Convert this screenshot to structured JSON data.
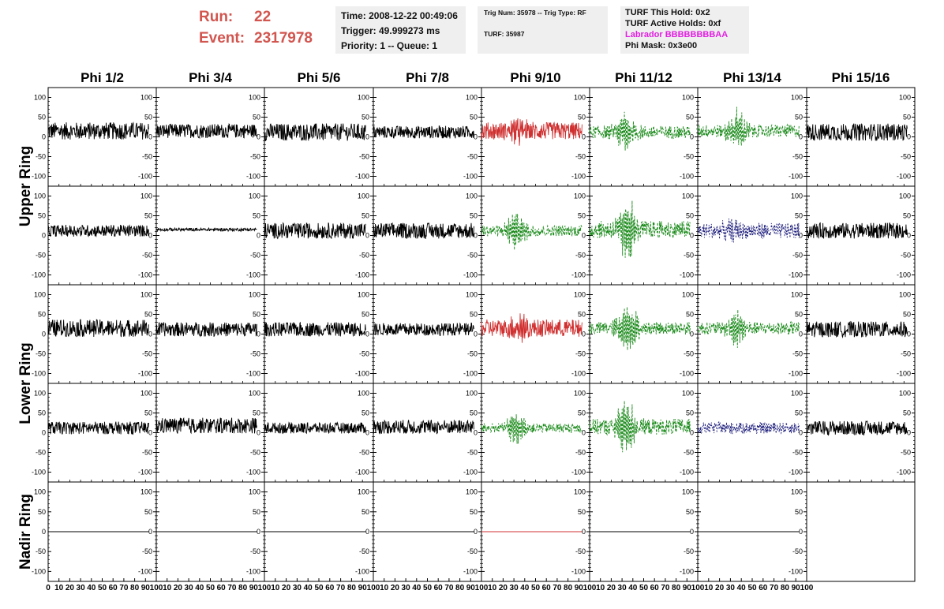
{
  "header": {
    "run_label": "Run:",
    "run_value": "22",
    "event_label": "Event:",
    "event_value": "2317978",
    "time_line": "Time: 2008-12-22 00:49:06",
    "trigger_line": "Trigger: 49.999273 ms",
    "priority_line": "Priority: 1 -- Queue: 1",
    "trig_num_line": "Trig Num: 35978 -- Trig Type: RF",
    "turf_line": "TURF: 35987",
    "turf_this_hold": "TURF This Hold: 0x2",
    "turf_active_holds": "TURF Active Holds: 0xf",
    "labrador": "Labrador BBBBBBBBAA",
    "phi_mask": "Phi Mask: 0x3e00"
  },
  "colors": {
    "run_text": "#d2554f",
    "labrador_text": "#e020e0",
    "normal_trace": "#000000",
    "triggered_trace": "#d03030",
    "neighbor_trace": "#1a8a1a",
    "masked_trace": "#1a1a7a"
  },
  "chart_data": {
    "type": "line",
    "columns": [
      "Phi 1/2",
      "Phi 3/4",
      "Phi 5/6",
      "Phi 7/8",
      "Phi 9/10",
      "Phi 11/12",
      "Phi 13/14",
      "Phi 15/16"
    ],
    "rows": [
      "Upper Ring",
      "Upper Ring",
      "Lower Ring",
      "Lower Ring",
      "Nadir Ring"
    ],
    "row_labels": [
      "Upper Ring",
      "Lower Ring",
      "Nadir Ring"
    ],
    "ylim": [
      -125,
      125
    ],
    "yticks": [
      -100,
      -50,
      0,
      50,
      100
    ],
    "ytick_labels": [
      "-100",
      "-50",
      "0",
      "50",
      "100"
    ],
    "xlim": [
      0,
      100
    ],
    "xticks": [
      0,
      10,
      20,
      30,
      40,
      50,
      60,
      70,
      80,
      90,
      100
    ],
    "xtick_labels": [
      "0",
      "10",
      "20",
      "30",
      "40",
      "50",
      "60",
      "70",
      "80",
      "90",
      "100"
    ],
    "grid": false,
    "panels": [
      [
        {
          "style": "normal",
          "amp": 22,
          "offset": 15,
          "burst": 0,
          "burst_center": 0
        },
        {
          "style": "normal",
          "amp": 18,
          "offset": 15,
          "burst": 0,
          "burst_center": 0
        },
        {
          "style": "normal",
          "amp": 22,
          "offset": 12,
          "burst": 0,
          "burst_center": 0
        },
        {
          "style": "normal",
          "amp": 16,
          "offset": 12,
          "burst": 0,
          "burst_center": 0
        },
        {
          "style": "triggered",
          "amp": 22,
          "offset": 15,
          "burst": 28,
          "burst_center": 35
        },
        {
          "style": "neighbor",
          "amp": 16,
          "offset": 12,
          "burst": 48,
          "burst_center": 33
        },
        {
          "style": "neighbor",
          "amp": 16,
          "offset": 15,
          "burst": 50,
          "burst_center": 36
        },
        {
          "style": "normal",
          "amp": 22,
          "offset": 12,
          "burst": 0,
          "burst_center": 0
        }
      ],
      [
        {
          "style": "normal",
          "amp": 15,
          "offset": 12,
          "burst": 0,
          "burst_center": 0
        },
        {
          "style": "normal",
          "amp": 4,
          "offset": 15,
          "burst": 0,
          "burst_center": 0
        },
        {
          "style": "normal",
          "amp": 20,
          "offset": 12,
          "burst": 0,
          "burst_center": 0
        },
        {
          "style": "normal",
          "amp": 20,
          "offset": 12,
          "burst": 0,
          "burst_center": 0
        },
        {
          "style": "neighbor",
          "amp": 14,
          "offset": 12,
          "burst": 48,
          "burst_center": 32
        },
        {
          "style": "neighbor",
          "amp": 22,
          "offset": 15,
          "burst": 70,
          "burst_center": 35
        },
        {
          "style": "masked",
          "amp": 20,
          "offset": 12,
          "burst": 15,
          "burst_center": 30
        },
        {
          "style": "normal",
          "amp": 20,
          "offset": 12,
          "burst": 0,
          "burst_center": 0
        }
      ],
      [
        {
          "style": "normal",
          "amp": 22,
          "offset": 15,
          "burst": 0,
          "burst_center": 0
        },
        {
          "style": "normal",
          "amp": 18,
          "offset": 12,
          "burst": 0,
          "burst_center": 0
        },
        {
          "style": "normal",
          "amp": 18,
          "offset": 12,
          "burst": 0,
          "burst_center": 0
        },
        {
          "style": "normal",
          "amp": 16,
          "offset": 12,
          "burst": 0,
          "burst_center": 0
        },
        {
          "style": "triggered",
          "amp": 22,
          "offset": 15,
          "burst": 25,
          "burst_center": 35
        },
        {
          "style": "neighbor",
          "amp": 16,
          "offset": 15,
          "burst": 70,
          "burst_center": 35
        },
        {
          "style": "neighbor",
          "amp": 16,
          "offset": 15,
          "burst": 45,
          "burst_center": 35
        },
        {
          "style": "normal",
          "amp": 20,
          "offset": 12,
          "burst": 0,
          "burst_center": 0
        }
      ],
      [
        {
          "style": "normal",
          "amp": 16,
          "offset": 12,
          "burst": 0,
          "burst_center": 0
        },
        {
          "style": "normal",
          "amp": 20,
          "offset": 18,
          "burst": 0,
          "burst_center": 0
        },
        {
          "style": "normal",
          "amp": 14,
          "offset": 12,
          "burst": 0,
          "burst_center": 0
        },
        {
          "style": "normal",
          "amp": 18,
          "offset": 15,
          "burst": 0,
          "burst_center": 0
        },
        {
          "style": "neighbor",
          "amp": 12,
          "offset": 12,
          "burst": 38,
          "burst_center": 32
        },
        {
          "style": "neighbor",
          "amp": 20,
          "offset": 15,
          "burst": 70,
          "burst_center": 33
        },
        {
          "style": "masked",
          "amp": 14,
          "offset": 12,
          "burst": 8,
          "burst_center": 30
        },
        {
          "style": "normal",
          "amp": 18,
          "offset": 12,
          "burst": 0,
          "burst_center": 0
        }
      ],
      [
        {
          "style": "normal",
          "amp": 0,
          "offset": 0,
          "burst": 0,
          "burst_center": 0
        },
        {
          "style": "normal",
          "amp": 0,
          "offset": 0,
          "burst": 0,
          "burst_center": 0
        },
        {
          "style": "normal",
          "amp": 0,
          "offset": 0,
          "burst": 0,
          "burst_center": 0
        },
        {
          "style": "normal",
          "amp": 0,
          "offset": 0,
          "burst": 0,
          "burst_center": 0
        },
        {
          "style": "triggered",
          "amp": 0,
          "offset": 0,
          "burst": 0,
          "burst_center": 0
        },
        {
          "style": "normal",
          "amp": 0,
          "offset": 0,
          "burst": 0,
          "burst_center": 0
        },
        {
          "style": "normal",
          "amp": 0,
          "offset": 0,
          "burst": 0,
          "burst_center": 0
        },
        {
          "style": "empty",
          "amp": 0,
          "offset": 0,
          "burst": 0,
          "burst_center": 0
        }
      ]
    ]
  }
}
